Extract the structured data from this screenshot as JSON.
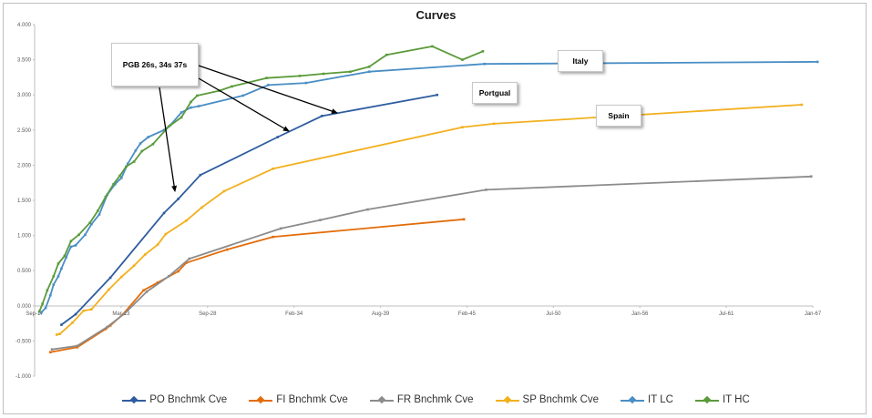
{
  "chart_data": {
    "type": "line",
    "title": "Curves",
    "xlabel": "",
    "ylabel": "",
    "x_tick_labels": [
      "Sep-17",
      "Mar-23",
      "Sep-28",
      "Feb-34",
      "Aug-39",
      "Feb-45",
      "Jul-50",
      "Jan-56",
      "Jul-61",
      "Jan-67"
    ],
    "y_tick_labels": [
      "-1.000",
      "-0.500",
      "0.000",
      "0.500",
      "1.000",
      "1.500",
      "2.000",
      "2.500",
      "3.000",
      "3.500",
      "4.000"
    ],
    "ylim": [
      -1,
      4
    ],
    "x_unit": "year",
    "xlim": [
      2017.7,
      2067.0
    ],
    "grid": "none",
    "legend_position": "bottom",
    "series": [
      {
        "name": "PO Bnchmk Cve",
        "color": "#2e5d9f",
        "x": [
          2019.4,
          2020.3,
          2022.5,
          2025.9,
          2026.8,
          2028.2,
          2033.1,
          2035.9,
          2043.2
        ],
        "y": [
          -0.27,
          -0.12,
          0.4,
          1.32,
          1.52,
          1.86,
          2.4,
          2.7,
          3.0
        ]
      },
      {
        "name": "FI Bnchmk Cve",
        "color": "#e36c0a",
        "x": [
          2018.7,
          2020.4,
          2022.2,
          2022.5,
          2023.3,
          2024.6,
          2025.5,
          2026.8,
          2027.3,
          2029.9,
          2032.8,
          2044.9
        ],
        "y": [
          -0.66,
          -0.59,
          -0.33,
          -0.28,
          -0.12,
          0.22,
          0.33,
          0.49,
          0.61,
          0.8,
          0.98,
          1.23
        ]
      },
      {
        "name": "FR Bnchmk Cve",
        "color": "#8c8c8c",
        "x": [
          2018.8,
          2020.4,
          2022.3,
          2023.4,
          2024.8,
          2026.2,
          2027.5,
          2033.3,
          2035.8,
          2038.8,
          2046.3,
          2066.9
        ],
        "y": [
          -0.62,
          -0.57,
          -0.3,
          -0.11,
          0.2,
          0.42,
          0.67,
          1.1,
          1.22,
          1.37,
          1.65,
          1.84
        ]
      },
      {
        "name": "SP Bnchmk Cve",
        "color": "#f2b01e",
        "x": [
          2019.1,
          2019.3,
          2020.1,
          2020.8,
          2021.3,
          2022.4,
          2023.2,
          2024.0,
          2024.7,
          2025.5,
          2026.0,
          2027.3,
          2028.3,
          2029.7,
          2032.8,
          2044.8,
          2046.8,
          2066.3
        ],
        "y": [
          -0.41,
          -0.4,
          -0.24,
          -0.07,
          -0.05,
          0.23,
          0.41,
          0.57,
          0.73,
          0.87,
          1.02,
          1.21,
          1.4,
          1.63,
          1.95,
          2.54,
          2.59,
          2.86
        ]
      },
      {
        "name": "IT LC",
        "color": "#4a8ec4",
        "x": [
          2018.1,
          2018.4,
          2018.7,
          2018.9,
          2019.2,
          2019.4,
          2019.7,
          2020.0,
          2020.3,
          2020.9,
          2021.3,
          2021.8,
          2022.3,
          2022.8,
          2023.2,
          2023.6,
          2024.1,
          2024.4,
          2024.9,
          2025.9,
          2026.3,
          2027.0,
          2027.6,
          2028.1,
          2030.9,
          2032.5,
          2034.9,
          2038.9,
          2046.2,
          2067.3
        ],
        "y": [
          -0.1,
          -0.03,
          0.15,
          0.3,
          0.42,
          0.53,
          0.69,
          0.84,
          0.86,
          1.01,
          1.16,
          1.3,
          1.58,
          1.73,
          1.82,
          2.02,
          2.21,
          2.31,
          2.4,
          2.5,
          2.57,
          2.75,
          2.82,
          2.84,
          2.99,
          3.14,
          3.17,
          3.33,
          3.44,
          3.47
        ]
      },
      {
        "name": "IT HC",
        "color": "#5a9a3a",
        "x": [
          2018.0,
          2018.2,
          2018.5,
          2018.9,
          2019.2,
          2019.6,
          2020.0,
          2020.5,
          2021.2,
          2021.7,
          2022.2,
          2022.7,
          2023.1,
          2023.5,
          2024.0,
          2024.5,
          2025.2,
          2026.2,
          2027.0,
          2027.6,
          2028.0,
          2029.4,
          2030.2,
          2032.4,
          2034.5,
          2036.0,
          2037.7,
          2038.9,
          2040.0,
          2042.9,
          2044.8,
          2046.1
        ],
        "y": [
          -0.08,
          0.03,
          0.22,
          0.42,
          0.6,
          0.71,
          0.92,
          1.01,
          1.18,
          1.35,
          1.55,
          1.73,
          1.85,
          1.98,
          2.05,
          2.2,
          2.3,
          2.55,
          2.68,
          2.9,
          2.99,
          3.06,
          3.12,
          3.24,
          3.27,
          3.3,
          3.33,
          3.4,
          3.57,
          3.69,
          3.5,
          3.62
        ]
      }
    ],
    "annotations": [
      {
        "text": "PGB 26s, 34s 37s"
      },
      {
        "text": "Italy"
      },
      {
        "text": "Portgual"
      },
      {
        "text": "Spain"
      }
    ]
  }
}
